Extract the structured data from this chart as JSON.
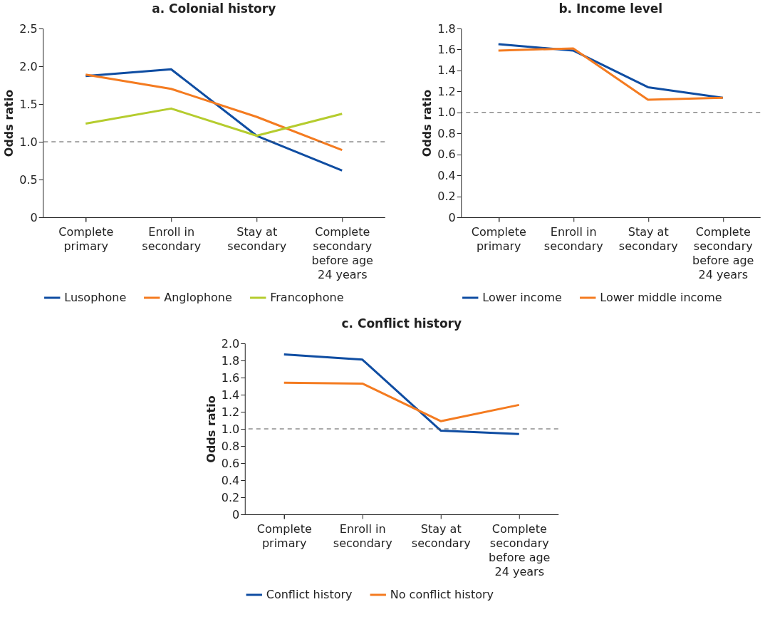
{
  "chart_data": [
    {
      "type": "line",
      "title": "a. Colonial history",
      "ylabel": "Odds ratio",
      "categories": [
        "Complete primary",
        "Enroll in secondary",
        "Stay at secondary",
        "Complete secondary before age 24 years"
      ],
      "series": [
        {
          "name": "Lusophone",
          "color": "#0f4da2",
          "values": [
            1.87,
            1.96,
            1.08,
            0.62
          ]
        },
        {
          "name": "Anglophone",
          "color": "#f47b20",
          "values": [
            1.89,
            1.7,
            1.33,
            0.89
          ]
        },
        {
          "name": "Francophone",
          "color": "#b5cc2e",
          "values": [
            1.24,
            1.44,
            1.08,
            1.37
          ]
        }
      ],
      "ylim": [
        0,
        2.5
      ],
      "yticks": [
        {
          "value": 0,
          "label": "0"
        },
        0.5,
        {
          "value": 1,
          "label": "1.0"
        },
        1.5,
        {
          "value": 2,
          "label": "2.0"
        },
        2.5
      ],
      "ref_lines": [
        {
          "axis": "y",
          "value": 1,
          "color": "#555555",
          "line_style": "dashed"
        }
      ],
      "grid": false,
      "legend": "bottom"
    },
    {
      "type": "line",
      "title": "b. Income level",
      "ylabel": "Odds ratio",
      "categories": [
        "Complete primary",
        "Enroll in secondary",
        "Stay at secondary",
        "Complete secondary before age 24 years"
      ],
      "series": [
        {
          "name": "Lower income",
          "color": "#0f4da2",
          "values": [
            1.65,
            1.59,
            1.24,
            1.14
          ]
        },
        {
          "name": "Lower middle income",
          "color": "#f47b20",
          "values": [
            1.59,
            1.61,
            1.12,
            1.14
          ]
        }
      ],
      "ylim": [
        0,
        1.8
      ],
      "yticks": [
        {
          "value": 0,
          "label": "0"
        },
        0.2,
        0.4,
        0.6,
        0.8,
        {
          "value": 1,
          "label": "1.0"
        },
        1.2,
        1.4,
        1.6,
        1.8
      ],
      "ref_lines": [
        {
          "axis": "y",
          "value": 1,
          "color": "#555555",
          "line_style": "dashed"
        }
      ],
      "grid": false,
      "legend": "bottom"
    },
    {
      "type": "line",
      "title": "c. Conflict history",
      "ylabel": "Odds ratio",
      "categories": [
        "Complete primary",
        "Enroll in secondary",
        "Stay at secondary",
        "Complete secondary before age 24 years"
      ],
      "series": [
        {
          "name": "Conflict history",
          "color": "#0f4da2",
          "values": [
            1.87,
            1.81,
            0.98,
            0.94
          ]
        },
        {
          "name": "No conflict history",
          "color": "#f47b20",
          "values": [
            1.54,
            1.53,
            1.09,
            1.28
          ]
        }
      ],
      "ylim": [
        0,
        2.0
      ],
      "yticks": [
        {
          "value": 0,
          "label": "0"
        },
        0.2,
        0.4,
        0.6,
        0.8,
        {
          "value": 1,
          "label": "1.0"
        },
        1.2,
        1.4,
        1.6,
        1.8,
        {
          "value": 2,
          "label": "2.0"
        }
      ],
      "ref_lines": [
        {
          "axis": "y",
          "value": 1,
          "color": "#555555",
          "line_style": "dashed"
        }
      ],
      "grid": false,
      "legend": "bottom"
    }
  ]
}
